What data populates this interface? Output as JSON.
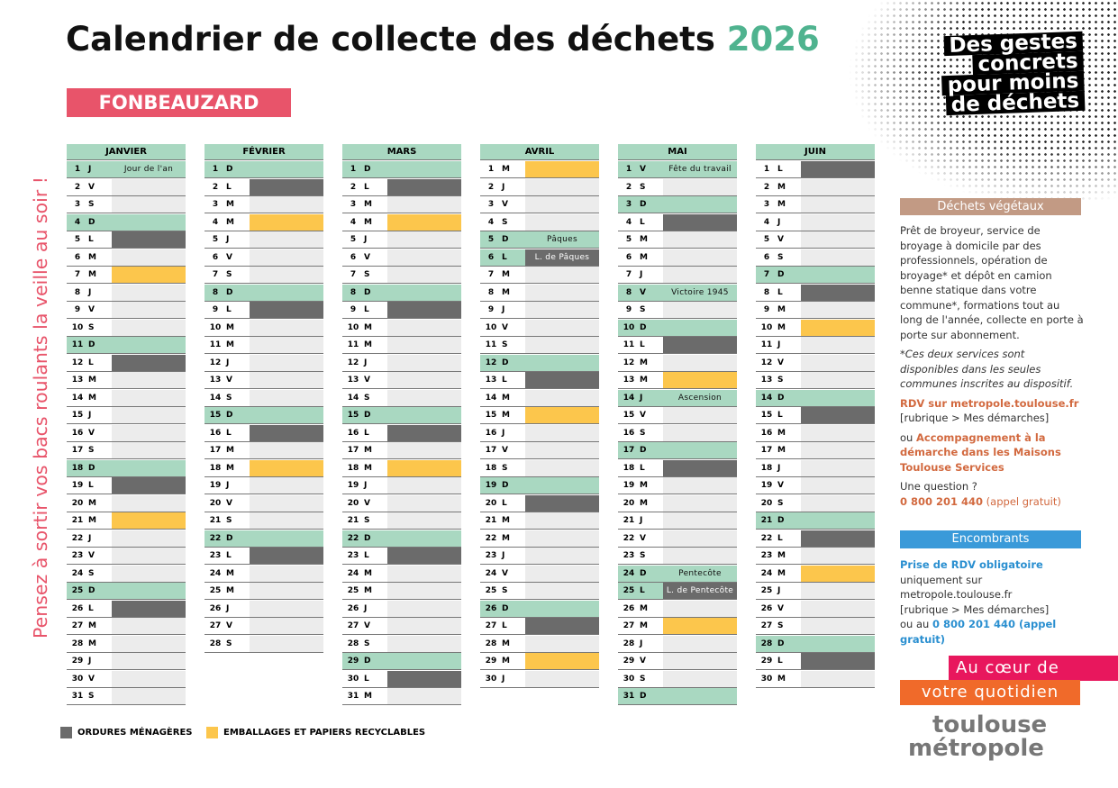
{
  "header": {
    "title": "Calendrier de collecte des déchets",
    "year": "2026",
    "commune": "FONBEAUZARD"
  },
  "reminder": "Pensez à sortir vos bacs roulants la veille au soir !",
  "slogan": [
    "Des gestes",
    "concrets",
    "pour moins",
    "de déchets"
  ],
  "legend": [
    {
      "label": "ORDURES MÉNAGÈRES",
      "color": "#6b6b6b"
    },
    {
      "label": "EMBALLAGES ET PAPIERS RECYCLABLES",
      "color": "#fcc64c"
    }
  ],
  "months": [
    {
      "name": "JANVIER",
      "days": [
        {
          "n": 1,
          "w": "J",
          "label": "Jour de l'an"
        },
        {
          "n": 2,
          "w": "V"
        },
        {
          "n": 3,
          "w": "S"
        },
        {
          "n": 4,
          "w": "D"
        },
        {
          "n": 5,
          "w": "L",
          "bin": "#6b6b6b"
        },
        {
          "n": 6,
          "w": "M"
        },
        {
          "n": 7,
          "w": "M",
          "bin": "#fcc64c"
        },
        {
          "n": 8,
          "w": "J"
        },
        {
          "n": 9,
          "w": "V"
        },
        {
          "n": 10,
          "w": "S"
        },
        {
          "n": 11,
          "w": "D"
        },
        {
          "n": 12,
          "w": "L",
          "bin": "#6b6b6b"
        },
        {
          "n": 13,
          "w": "M"
        },
        {
          "n": 14,
          "w": "M"
        },
        {
          "n": 15,
          "w": "J"
        },
        {
          "n": 16,
          "w": "V"
        },
        {
          "n": 17,
          "w": "S"
        },
        {
          "n": 18,
          "w": "D"
        },
        {
          "n": 19,
          "w": "L",
          "bin": "#6b6b6b"
        },
        {
          "n": 20,
          "w": "M"
        },
        {
          "n": 21,
          "w": "M",
          "bin": "#fcc64c"
        },
        {
          "n": 22,
          "w": "J"
        },
        {
          "n": 23,
          "w": "V"
        },
        {
          "n": 24,
          "w": "S"
        },
        {
          "n": 25,
          "w": "D"
        },
        {
          "n": 26,
          "w": "L",
          "bin": "#6b6b6b"
        },
        {
          "n": 27,
          "w": "M"
        },
        {
          "n": 28,
          "w": "M"
        },
        {
          "n": 29,
          "w": "J"
        },
        {
          "n": 30,
          "w": "V"
        },
        {
          "n": 31,
          "w": "S"
        }
      ]
    },
    {
      "name": "FÉVRIER",
      "days": [
        {
          "n": 1,
          "w": "D"
        },
        {
          "n": 2,
          "w": "L",
          "bin": "#6b6b6b"
        },
        {
          "n": 3,
          "w": "M"
        },
        {
          "n": 4,
          "w": "M",
          "bin": "#fcc64c"
        },
        {
          "n": 5,
          "w": "J"
        },
        {
          "n": 6,
          "w": "V"
        },
        {
          "n": 7,
          "w": "S"
        },
        {
          "n": 8,
          "w": "D"
        },
        {
          "n": 9,
          "w": "L",
          "bin": "#6b6b6b"
        },
        {
          "n": 10,
          "w": "M"
        },
        {
          "n": 11,
          "w": "M"
        },
        {
          "n": 12,
          "w": "J"
        },
        {
          "n": 13,
          "w": "V"
        },
        {
          "n": 14,
          "w": "S"
        },
        {
          "n": 15,
          "w": "D"
        },
        {
          "n": 16,
          "w": "L",
          "bin": "#6b6b6b"
        },
        {
          "n": 17,
          "w": "M"
        },
        {
          "n": 18,
          "w": "M",
          "bin": "#fcc64c"
        },
        {
          "n": 19,
          "w": "J"
        },
        {
          "n": 20,
          "w": "V"
        },
        {
          "n": 21,
          "w": "S"
        },
        {
          "n": 22,
          "w": "D"
        },
        {
          "n": 23,
          "w": "L",
          "bin": "#6b6b6b"
        },
        {
          "n": 24,
          "w": "M"
        },
        {
          "n": 25,
          "w": "M"
        },
        {
          "n": 26,
          "w": "J"
        },
        {
          "n": 27,
          "w": "V"
        },
        {
          "n": 28,
          "w": "S"
        }
      ]
    },
    {
      "name": "MARS",
      "days": [
        {
          "n": 1,
          "w": "D"
        },
        {
          "n": 2,
          "w": "L",
          "bin": "#6b6b6b"
        },
        {
          "n": 3,
          "w": "M"
        },
        {
          "n": 4,
          "w": "M",
          "bin": "#fcc64c"
        },
        {
          "n": 5,
          "w": "J"
        },
        {
          "n": 6,
          "w": "V"
        },
        {
          "n": 7,
          "w": "S"
        },
        {
          "n": 8,
          "w": "D"
        },
        {
          "n": 9,
          "w": "L",
          "bin": "#6b6b6b"
        },
        {
          "n": 10,
          "w": "M"
        },
        {
          "n": 11,
          "w": "M"
        },
        {
          "n": 12,
          "w": "J"
        },
        {
          "n": 13,
          "w": "V"
        },
        {
          "n": 14,
          "w": "S"
        },
        {
          "n": 15,
          "w": "D"
        },
        {
          "n": 16,
          "w": "L",
          "bin": "#6b6b6b"
        },
        {
          "n": 17,
          "w": "M"
        },
        {
          "n": 18,
          "w": "M",
          "bin": "#fcc64c"
        },
        {
          "n": 19,
          "w": "J"
        },
        {
          "n": 20,
          "w": "V"
        },
        {
          "n": 21,
          "w": "S"
        },
        {
          "n": 22,
          "w": "D"
        },
        {
          "n": 23,
          "w": "L",
          "bin": "#6b6b6b"
        },
        {
          "n": 24,
          "w": "M"
        },
        {
          "n": 25,
          "w": "M"
        },
        {
          "n": 26,
          "w": "J"
        },
        {
          "n": 27,
          "w": "V"
        },
        {
          "n": 28,
          "w": "S"
        },
        {
          "n": 29,
          "w": "D"
        },
        {
          "n": 30,
          "w": "L",
          "bin": "#6b6b6b"
        },
        {
          "n": 31,
          "w": "M"
        }
      ]
    },
    {
      "name": "AVRIL",
      "days": [
        {
          "n": 1,
          "w": "M",
          "bin": "#fcc64c"
        },
        {
          "n": 2,
          "w": "J"
        },
        {
          "n": 3,
          "w": "V"
        },
        {
          "n": 4,
          "w": "S"
        },
        {
          "n": 5,
          "w": "D",
          "label": "Pâques"
        },
        {
          "n": 6,
          "w": "L",
          "bin": "#6b6b6b",
          "label": "L. de Pâques"
        },
        {
          "n": 7,
          "w": "M"
        },
        {
          "n": 8,
          "w": "M"
        },
        {
          "n": 9,
          "w": "J"
        },
        {
          "n": 10,
          "w": "V"
        },
        {
          "n": 11,
          "w": "S"
        },
        {
          "n": 12,
          "w": "D"
        },
        {
          "n": 13,
          "w": "L",
          "bin": "#6b6b6b"
        },
        {
          "n": 14,
          "w": "M"
        },
        {
          "n": 15,
          "w": "M",
          "bin": "#fcc64c"
        },
        {
          "n": 16,
          "w": "J"
        },
        {
          "n": 17,
          "w": "V"
        },
        {
          "n": 18,
          "w": "S"
        },
        {
          "n": 19,
          "w": "D"
        },
        {
          "n": 20,
          "w": "L",
          "bin": "#6b6b6b"
        },
        {
          "n": 21,
          "w": "M"
        },
        {
          "n": 22,
          "w": "M"
        },
        {
          "n": 23,
          "w": "J"
        },
        {
          "n": 24,
          "w": "V"
        },
        {
          "n": 25,
          "w": "S"
        },
        {
          "n": 26,
          "w": "D"
        },
        {
          "n": 27,
          "w": "L",
          "bin": "#6b6b6b"
        },
        {
          "n": 28,
          "w": "M"
        },
        {
          "n": 29,
          "w": "M",
          "bin": "#fcc64c"
        },
        {
          "n": 30,
          "w": "J"
        }
      ]
    },
    {
      "name": "MAI",
      "days": [
        {
          "n": 1,
          "w": "V",
          "label": "Fête du travail"
        },
        {
          "n": 2,
          "w": "S"
        },
        {
          "n": 3,
          "w": "D"
        },
        {
          "n": 4,
          "w": "L",
          "bin": "#6b6b6b"
        },
        {
          "n": 5,
          "w": "M"
        },
        {
          "n": 6,
          "w": "M"
        },
        {
          "n": 7,
          "w": "J"
        },
        {
          "n": 8,
          "w": "V",
          "label": "Victoire 1945"
        },
        {
          "n": 9,
          "w": "S"
        },
        {
          "n": 10,
          "w": "D"
        },
        {
          "n": 11,
          "w": "L",
          "bin": "#6b6b6b"
        },
        {
          "n": 12,
          "w": "M"
        },
        {
          "n": 13,
          "w": "M",
          "bin": "#fcc64c"
        },
        {
          "n": 14,
          "w": "J",
          "label": "Ascension"
        },
        {
          "n": 15,
          "w": "V"
        },
        {
          "n": 16,
          "w": "S"
        },
        {
          "n": 17,
          "w": "D"
        },
        {
          "n": 18,
          "w": "L",
          "bin": "#6b6b6b"
        },
        {
          "n": 19,
          "w": "M"
        },
        {
          "n": 20,
          "w": "M"
        },
        {
          "n": 21,
          "w": "J"
        },
        {
          "n": 22,
          "w": "V"
        },
        {
          "n": 23,
          "w": "S"
        },
        {
          "n": 24,
          "w": "D",
          "label": "Pentecôte"
        },
        {
          "n": 25,
          "w": "L",
          "bin": "#6b6b6b",
          "label": "L. de Pentecôte"
        },
        {
          "n": 26,
          "w": "M"
        },
        {
          "n": 27,
          "w": "M",
          "bin": "#fcc64c"
        },
        {
          "n": 28,
          "w": "J"
        },
        {
          "n": 29,
          "w": "V"
        },
        {
          "n": 30,
          "w": "S"
        },
        {
          "n": 31,
          "w": "D"
        }
      ]
    },
    {
      "name": "JUIN",
      "days": [
        {
          "n": 1,
          "w": "L",
          "bin": "#6b6b6b"
        },
        {
          "n": 2,
          "w": "M"
        },
        {
          "n": 3,
          "w": "M"
        },
        {
          "n": 4,
          "w": "J"
        },
        {
          "n": 5,
          "w": "V"
        },
        {
          "n": 6,
          "w": "S"
        },
        {
          "n": 7,
          "w": "D"
        },
        {
          "n": 8,
          "w": "L",
          "bin": "#6b6b6b"
        },
        {
          "n": 9,
          "w": "M"
        },
        {
          "n": 10,
          "w": "M",
          "bin": "#fcc64c"
        },
        {
          "n": 11,
          "w": "J"
        },
        {
          "n": 12,
          "w": "V"
        },
        {
          "n": 13,
          "w": "S"
        },
        {
          "n": 14,
          "w": "D"
        },
        {
          "n": 15,
          "w": "L",
          "bin": "#6b6b6b"
        },
        {
          "n": 16,
          "w": "M"
        },
        {
          "n": 17,
          "w": "M"
        },
        {
          "n": 18,
          "w": "J"
        },
        {
          "n": 19,
          "w": "V"
        },
        {
          "n": 20,
          "w": "S"
        },
        {
          "n": 21,
          "w": "D"
        },
        {
          "n": 22,
          "w": "L",
          "bin": "#6b6b6b"
        },
        {
          "n": 23,
          "w": "M"
        },
        {
          "n": 24,
          "w": "M",
          "bin": "#fcc64c"
        },
        {
          "n": 25,
          "w": "J"
        },
        {
          "n": 26,
          "w": "V"
        },
        {
          "n": 27,
          "w": "S"
        },
        {
          "n": 28,
          "w": "D"
        },
        {
          "n": 29,
          "w": "L",
          "bin": "#6b6b6b"
        },
        {
          "n": 30,
          "w": "M"
        }
      ]
    }
  ],
  "vegetal": {
    "title": "Déchets végétaux",
    "text": "Prêt de broyeur, service de broyage à domicile par des professionnels, opération de broyage* et dépôt en camion benne statique dans votre commune*, formations tout au long de l'année, collecte en porte à porte sur abonnement.",
    "note": "*Ces deux services sont disponibles dans les seules communes inscrites au dispositif.",
    "rdv": "RDV sur metropole.toulouse.fr",
    "rubrique": "[rubrique > Mes démarches]",
    "or": "ou ",
    "accomp": "Accompagnement à la démarche dans les Maisons Toulouse Services",
    "question": "Une question ?",
    "phone": "0 800 201 440",
    "free": " (appel gratuit)"
  },
  "encombrants": {
    "title": "Encombrants",
    "rdv": "Prise de RDV obligatoire",
    "site": "uniquement sur metropole.toulouse.fr",
    "rubrique": "[rubrique > Mes démarches]",
    "or": "ou au ",
    "phone": "0 800 201 440",
    "free": " (appel gratuit)"
  },
  "tagline": [
    "Au cœur de",
    "votre quotidien"
  ],
  "logo": [
    "toulouse",
    "métropole"
  ]
}
